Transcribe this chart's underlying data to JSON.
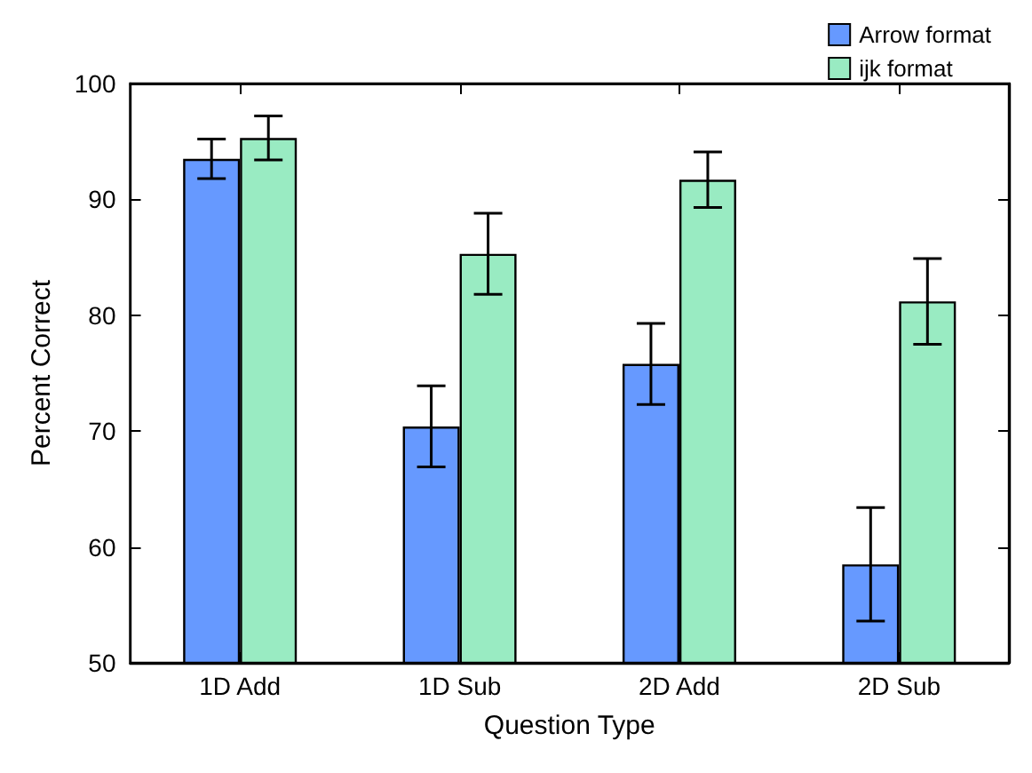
{
  "chart_data": {
    "type": "bar",
    "xlabel": "Question Type",
    "ylabel": "Percent Correct",
    "categories": [
      "1D Add",
      "1D Sub",
      "2D Add",
      "2D Sub"
    ],
    "series": [
      {
        "name": "Arrow format",
        "color": "#6699ff",
        "values": [
          93.5,
          70.4,
          75.8,
          58.5
        ],
        "errors": [
          1.7,
          3.5,
          3.5,
          4.9
        ]
      },
      {
        "name": "ijk format",
        "color": "#99ebc2",
        "values": [
          95.3,
          85.3,
          91.7,
          81.2
        ],
        "errors": [
          1.9,
          3.5,
          2.4,
          3.7
        ]
      }
    ],
    "ylim": [
      50,
      100
    ],
    "yticks": [
      50,
      60,
      70,
      80,
      90,
      100
    ],
    "grid": false,
    "legend": "top right"
  }
}
